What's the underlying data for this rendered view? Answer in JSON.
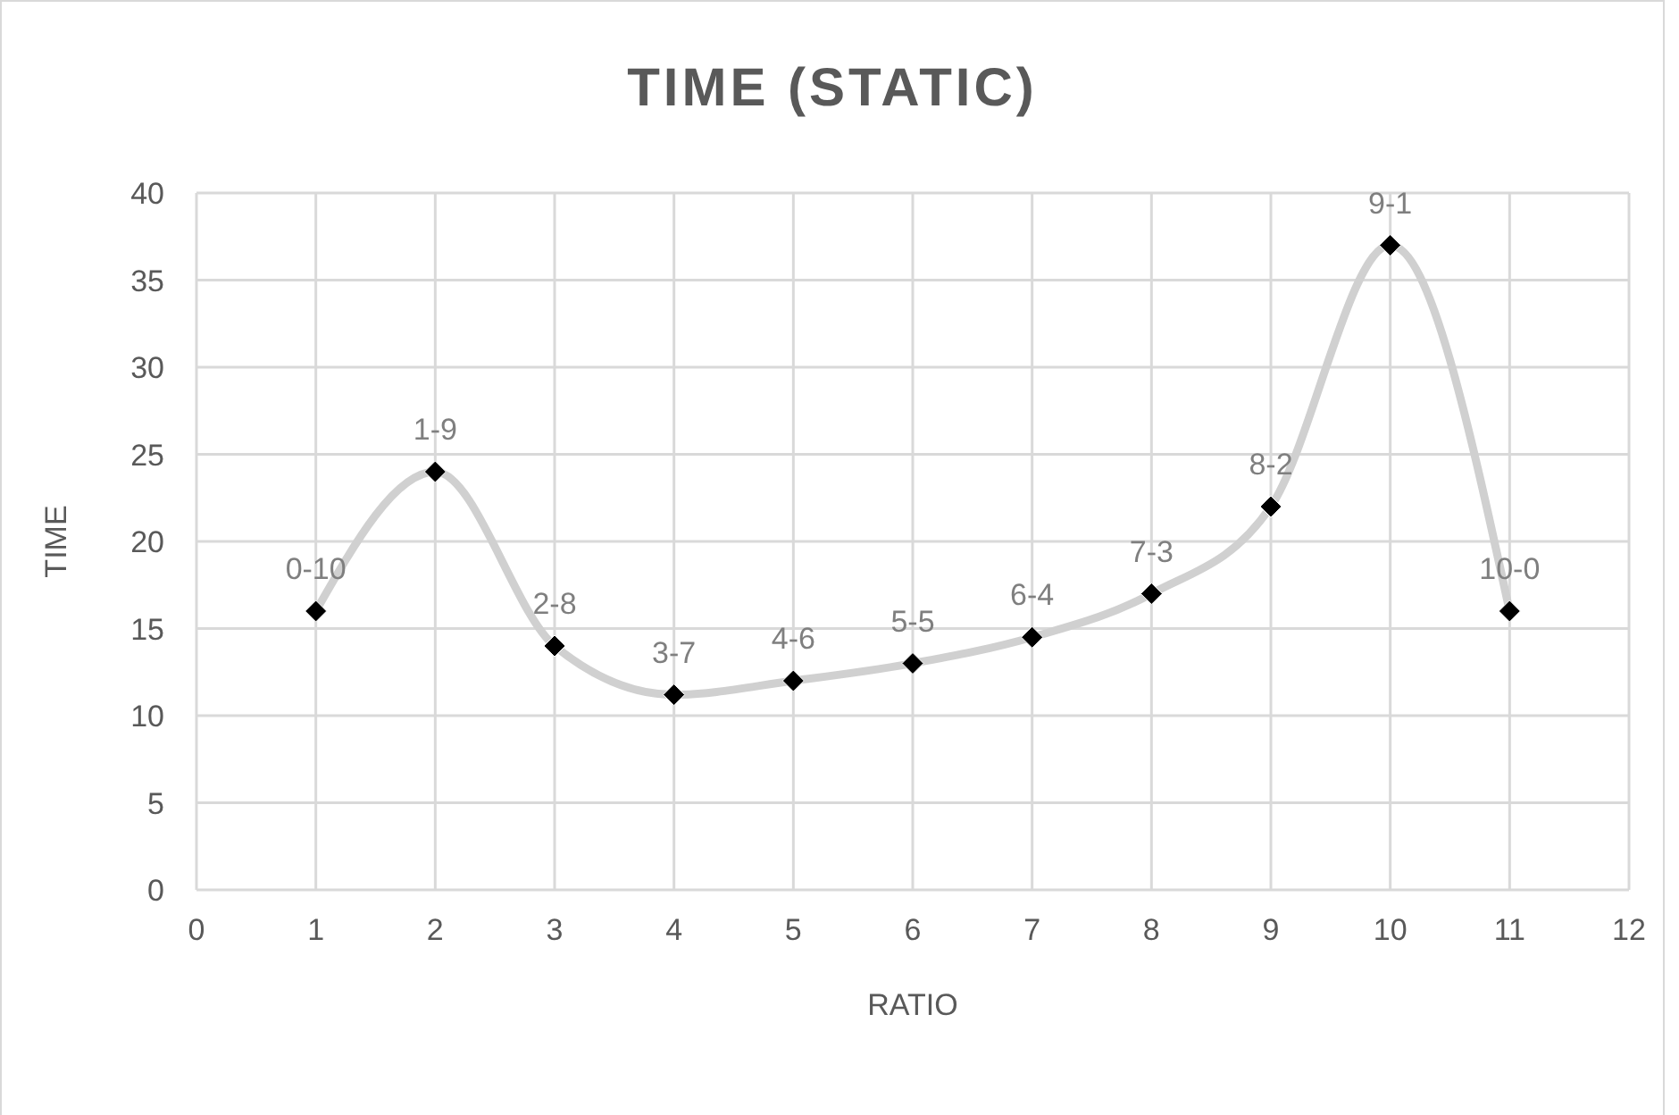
{
  "chart_data": {
    "type": "line",
    "title": "TIME (STATIC)",
    "xlabel": "RATIO",
    "ylabel": "TIME",
    "x": [
      1,
      2,
      3,
      4,
      5,
      6,
      7,
      8,
      9,
      10,
      11
    ],
    "series": [
      {
        "color": "#d0d0d0",
        "colors": [
          "#000000",
          "#000000",
          "#000000",
          "#000000",
          "#000000",
          "#000000",
          "#000000",
          "#000000",
          "#000000",
          "#000000",
          "#000000"
        ],
        "values": [
          16,
          24,
          14,
          11.2,
          12,
          13,
          14.5,
          17,
          22,
          37,
          16
        ]
      }
    ],
    "xlim": [
      0,
      12
    ],
    "xticks": [
      0,
      1,
      2,
      3,
      4,
      5,
      6,
      7,
      8,
      9,
      10,
      11,
      12
    ],
    "ylim": [
      0,
      40
    ],
    "yticks": [
      0,
      5,
      10,
      15,
      20,
      25,
      30,
      35,
      40
    ],
    "grid": true,
    "marker": "diamond",
    "line_style": "solid",
    "legend": false,
    "annotations": [
      {
        "text": "0-10",
        "x": 1,
        "y": 16
      },
      {
        "text": "1-9",
        "x": 2,
        "y": 24
      },
      {
        "text": "2-8",
        "x": 3,
        "y": 14
      },
      {
        "text": "3-7",
        "x": 4,
        "y": 11.2
      },
      {
        "text": "4-6",
        "x": 5,
        "y": 12
      },
      {
        "text": "5-5",
        "x": 6,
        "y": 13
      },
      {
        "text": "6-4",
        "x": 7,
        "y": 14.5
      },
      {
        "text": "7-3",
        "x": 8,
        "y": 17
      },
      {
        "text": "8-2",
        "x": 9,
        "y": 22
      },
      {
        "text": "9-1",
        "x": 10,
        "y": 37
      },
      {
        "text": "10-0",
        "x": 11,
        "y": 16
      }
    ]
  }
}
